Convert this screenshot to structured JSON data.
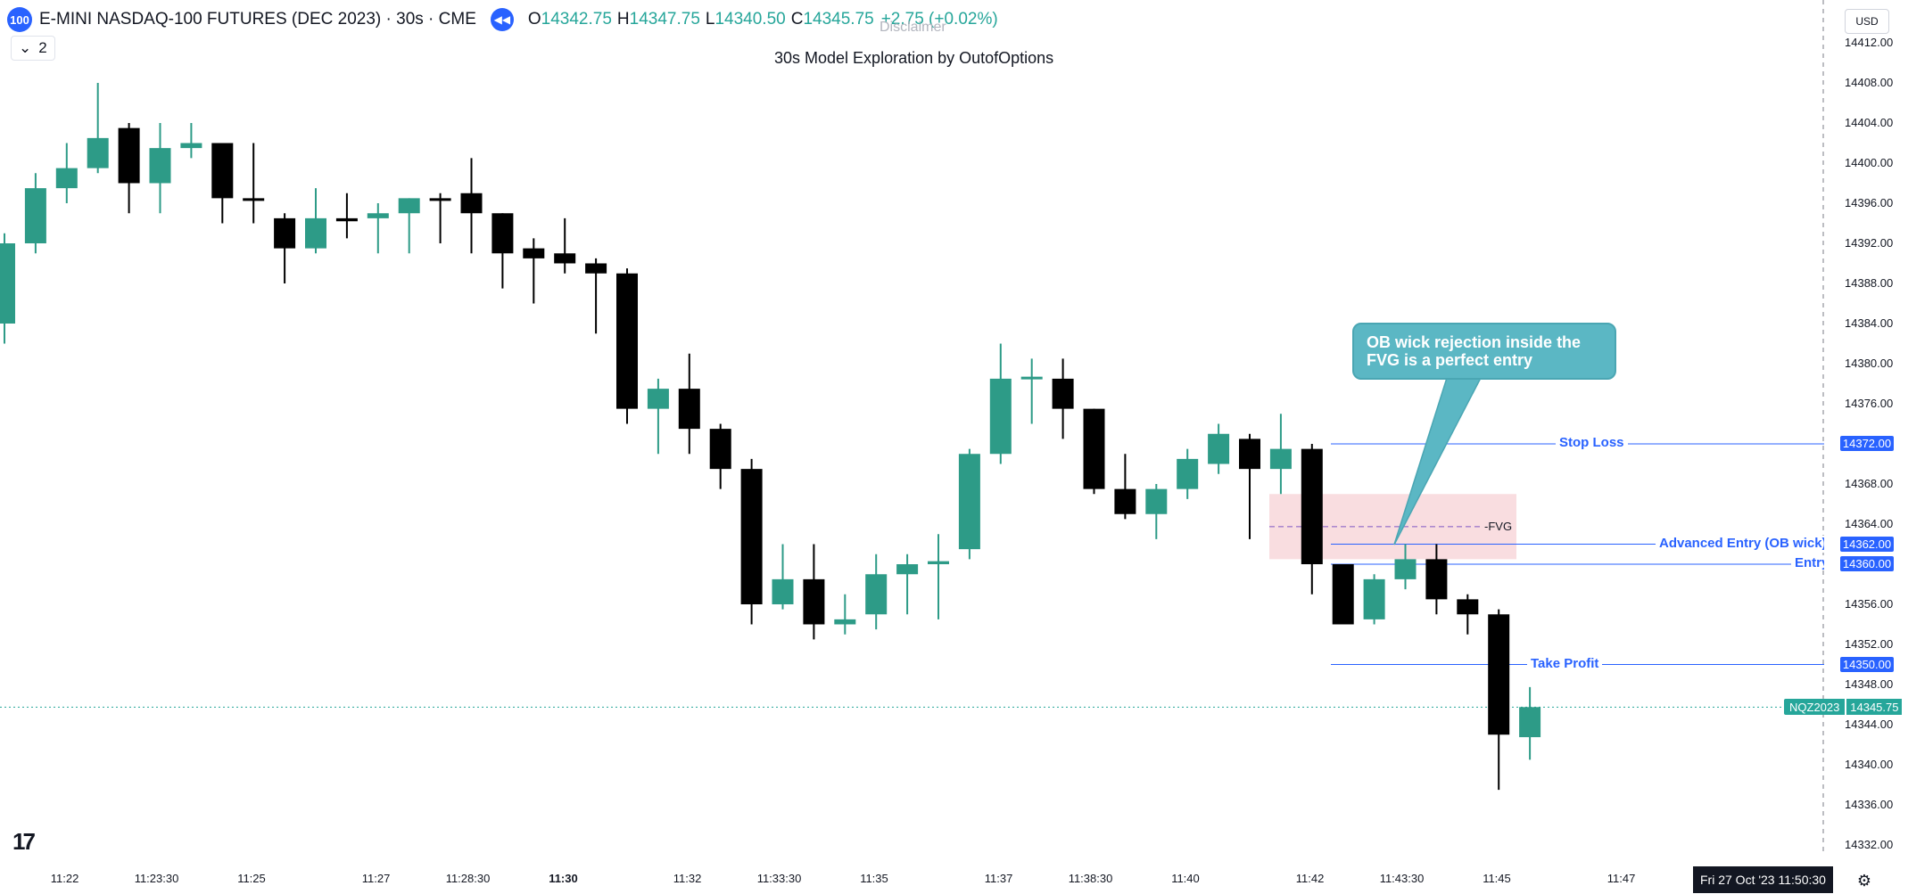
{
  "symbol": {
    "badge": "100",
    "title": "E-MINI NASDAQ-100 FUTURES (DEC 2023) · 30s · CME",
    "o_label": "O",
    "o_value": "14342.75",
    "h_label": "H",
    "h_value": "14347.75",
    "l_label": "L",
    "l_value": "14340.50",
    "c_label": "C",
    "c_value": "14345.75",
    "change": "+2.75 (+0.02%)",
    "collapse_count": "2"
  },
  "disclaimer": "Disclaimer",
  "indicator_title": "30s Model Exploration by OutofOptions",
  "callout": "OB wick rejection inside the FVG is a perfect entry",
  "fvg_label": "-FVG",
  "currency": "USD",
  "levels": [
    {
      "label": "Stop Loss",
      "price": 14372.0,
      "tag": "14372.00"
    },
    {
      "label": "Advanced Entry (OB wick)",
      "price": 14362.0,
      "tag": "14362.00"
    },
    {
      "label": "Entry",
      "price": 14360.0,
      "tag": "14360.00"
    },
    {
      "label": "Take Profit",
      "price": 14350.0,
      "tag": "14350.00"
    }
  ],
  "last_price": {
    "symbol": "NQZ2023",
    "price": "14345.75",
    "value": 14345.75
  },
  "price_ticks": [
    "14412.00",
    "14408.00",
    "14404.00",
    "14400.00",
    "14396.00",
    "14392.00",
    "14388.00",
    "14384.00",
    "14380.00",
    "14376.00",
    "14368.00",
    "14364.00",
    "14356.00",
    "14352.00",
    "14348.00",
    "14344.00",
    "14340.00",
    "14336.00",
    "14332.00"
  ],
  "time_ticks": [
    {
      "label": "11:22"
    },
    {
      "label": "11:23:30"
    },
    {
      "label": "11:25"
    },
    {
      "label": "11:27"
    },
    {
      "label": "11:28:30"
    },
    {
      "label": "11:30",
      "major": true
    },
    {
      "label": "11:32"
    },
    {
      "label": "11:33:30"
    },
    {
      "label": "11:35"
    },
    {
      "label": "11:37"
    },
    {
      "label": "11:38:30"
    },
    {
      "label": "11:40"
    },
    {
      "label": "11:42"
    },
    {
      "label": "11:43:30"
    },
    {
      "label": "11:45"
    },
    {
      "label": "11:47"
    }
  ],
  "crosshair_date": "Fri 27 Oct '23   11:50:30",
  "colors": {
    "up": "#2d9b87",
    "down": "#000000",
    "level": "#2962ff",
    "fvg": "#f8d7da",
    "callout": "#5bb7c4"
  },
  "chart_data": {
    "type": "candlestick",
    "interval": "30s",
    "ylim": [
      14330.0,
      14415.0
    ],
    "fvg": {
      "top": 14367.0,
      "bottom": 14360.5
    },
    "candles": [
      {
        "t": "11:21:00",
        "o": 14384.0,
        "h": 14393.0,
        "l": 14382.0,
        "c": 14392.0
      },
      {
        "t": "11:21:30",
        "o": 14392.0,
        "h": 14399.0,
        "l": 14391.0,
        "c": 14397.5
      },
      {
        "t": "11:22:00",
        "o": 14397.5,
        "h": 14402.0,
        "l": 14396.0,
        "c": 14399.5
      },
      {
        "t": "11:22:30",
        "o": 14399.5,
        "h": 14408.0,
        "l": 14399.0,
        "c": 14402.5
      },
      {
        "t": "11:23:00",
        "o": 14403.5,
        "h": 14404.0,
        "l": 14395.0,
        "c": 14398.0
      },
      {
        "t": "11:23:30",
        "o": 14398.0,
        "h": 14404.0,
        "l": 14395.0,
        "c": 14401.5
      },
      {
        "t": "11:24:00",
        "o": 14401.5,
        "h": 14404.0,
        "l": 14400.5,
        "c": 14402.0
      },
      {
        "t": "11:24:30",
        "o": 14402.0,
        "h": 14402.0,
        "l": 14394.0,
        "c": 14396.5
      },
      {
        "t": "11:25:00",
        "o": 14396.5,
        "h": 14402.0,
        "l": 14394.0,
        "c": 14396.3
      },
      {
        "t": "11:25:30",
        "o": 14394.5,
        "h": 14395.0,
        "l": 14388.0,
        "c": 14391.5
      },
      {
        "t": "11:26:00",
        "o": 14391.5,
        "h": 14397.5,
        "l": 14391.0,
        "c": 14394.5
      },
      {
        "t": "11:26:30",
        "o": 14394.5,
        "h": 14397.0,
        "l": 14392.5,
        "c": 14394.2
      },
      {
        "t": "11:27:00",
        "o": 14394.5,
        "h": 14396.0,
        "l": 14391.0,
        "c": 14395.0
      },
      {
        "t": "11:27:30",
        "o": 14395.0,
        "h": 14396.5,
        "l": 14391.0,
        "c": 14396.5
      },
      {
        "t": "11:28:00",
        "o": 14396.5,
        "h": 14397.0,
        "l": 14392.0,
        "c": 14396.3
      },
      {
        "t": "11:28:30",
        "o": 14397.0,
        "h": 14400.5,
        "l": 14391.0,
        "c": 14395.0
      },
      {
        "t": "11:29:00",
        "o": 14395.0,
        "h": 14395.0,
        "l": 14387.5,
        "c": 14391.0
      },
      {
        "t": "11:29:30",
        "o": 14391.5,
        "h": 14392.5,
        "l": 14386.0,
        "c": 14390.5
      },
      {
        "t": "11:30:00",
        "o": 14391.0,
        "h": 14394.5,
        "l": 14389.0,
        "c": 14390.0
      },
      {
        "t": "11:30:30",
        "o": 14390.0,
        "h": 14390.5,
        "l": 14383.0,
        "c": 14389.0
      },
      {
        "t": "11:31:00",
        "o": 14389.0,
        "h": 14389.5,
        "l": 14374.0,
        "c": 14375.5
      },
      {
        "t": "11:31:30",
        "o": 14375.5,
        "h": 14378.5,
        "l": 14371.0,
        "c": 14377.5
      },
      {
        "t": "11:32:00",
        "o": 14377.5,
        "h": 14381.0,
        "l": 14371.0,
        "c": 14373.5
      },
      {
        "t": "11:32:30",
        "o": 14373.5,
        "h": 14374.0,
        "l": 14367.5,
        "c": 14369.5
      },
      {
        "t": "11:33:00",
        "o": 14369.5,
        "h": 14370.5,
        "l": 14354.0,
        "c": 14356.0
      },
      {
        "t": "11:33:30",
        "o": 14356.0,
        "h": 14362.0,
        "l": 14355.5,
        "c": 14358.5
      },
      {
        "t": "11:34:00",
        "o": 14358.5,
        "h": 14362.0,
        "l": 14352.5,
        "c": 14354.0
      },
      {
        "t": "11:34:30",
        "o": 14354.0,
        "h": 14357.0,
        "l": 14353.0,
        "c": 14354.5
      },
      {
        "t": "11:35:00",
        "o": 14355.0,
        "h": 14361.0,
        "l": 14353.5,
        "c": 14359.0
      },
      {
        "t": "11:35:30",
        "o": 14359.0,
        "h": 14361.0,
        "l": 14355.0,
        "c": 14360.0
      },
      {
        "t": "11:36:00",
        "o": 14360.0,
        "h": 14363.0,
        "l": 14354.5,
        "c": 14360.3
      },
      {
        "t": "11:36:30",
        "o": 14361.5,
        "h": 14371.5,
        "l": 14360.5,
        "c": 14371.0
      },
      {
        "t": "11:37:00",
        "o": 14371.0,
        "h": 14382.0,
        "l": 14370.0,
        "c": 14378.5
      },
      {
        "t": "11:37:30",
        "o": 14378.5,
        "h": 14380.5,
        "l": 14374.0,
        "c": 14378.7
      },
      {
        "t": "11:38:00",
        "o": 14378.5,
        "h": 14380.5,
        "l": 14372.5,
        "c": 14375.5
      },
      {
        "t": "11:38:30",
        "o": 14375.5,
        "h": 14375.5,
        "l": 14367.0,
        "c": 14367.5
      },
      {
        "t": "11:39:00",
        "o": 14367.5,
        "h": 14371.0,
        "l": 14364.5,
        "c": 14365.0
      },
      {
        "t": "11:39:30",
        "o": 14365.0,
        "h": 14368.0,
        "l": 14362.5,
        "c": 14367.5
      },
      {
        "t": "11:40:00",
        "o": 14367.5,
        "h": 14371.5,
        "l": 14366.5,
        "c": 14370.5
      },
      {
        "t": "11:40:30",
        "o": 14370.0,
        "h": 14374.0,
        "l": 14369.0,
        "c": 14373.0
      },
      {
        "t": "11:41:00",
        "o": 14372.5,
        "h": 14373.0,
        "l": 14362.5,
        "c": 14369.5
      },
      {
        "t": "11:41:30",
        "o": 14369.5,
        "h": 14375.0,
        "l": 14367.0,
        "c": 14371.5
      },
      {
        "t": "11:42:00",
        "o": 14371.5,
        "h": 14372.0,
        "l": 14357.0,
        "c": 14360.0
      },
      {
        "t": "11:42:30",
        "o": 14360.0,
        "h": 14360.0,
        "l": 14354.0,
        "c": 14354.0
      },
      {
        "t": "11:43:00",
        "o": 14354.5,
        "h": 14359.0,
        "l": 14354.0,
        "c": 14358.5
      },
      {
        "t": "11:43:30",
        "o": 14358.5,
        "h": 14362.0,
        "l": 14357.5,
        "c": 14360.5
      },
      {
        "t": "11:44:00",
        "o": 14360.5,
        "h": 14362.0,
        "l": 14355.0,
        "c": 14356.5
      },
      {
        "t": "11:44:30",
        "o": 14356.5,
        "h": 14357.0,
        "l": 14353.0,
        "c": 14355.0
      },
      {
        "t": "11:45:00",
        "o": 14355.0,
        "h": 14355.5,
        "l": 14337.5,
        "c": 14343.0
      },
      {
        "t": "11:45:30",
        "o": 14342.75,
        "h": 14347.75,
        "l": 14340.5,
        "c": 14345.75
      }
    ]
  }
}
